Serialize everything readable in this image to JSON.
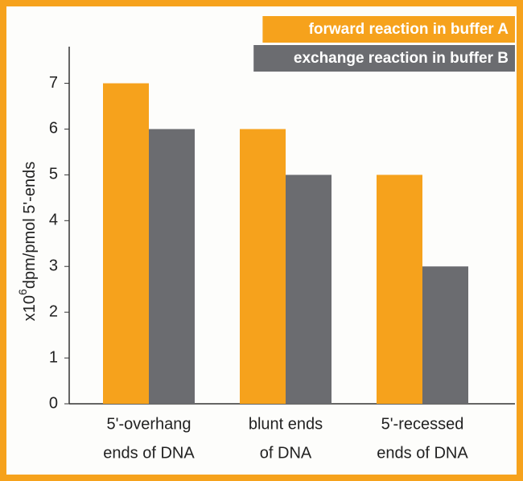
{
  "chart_data": {
    "type": "bar",
    "y_label": {
      "prefix": "x10",
      "superscript": "6",
      "text": "dpm/pmol 5'-ends"
    },
    "categories": [
      [
        "5'-overhang",
        "ends of DNA"
      ],
      [
        "blunt ends",
        "of DNA"
      ],
      [
        "5'-recessed",
        "ends of DNA"
      ]
    ],
    "series": [
      {
        "name": "forward reaction in buffer A",
        "color": "#f6a21c",
        "values": [
          7,
          6,
          5
        ]
      },
      {
        "name": "exchange reaction in buffer B",
        "color": "#6b6c70",
        "values": [
          6,
          5,
          3
        ]
      }
    ],
    "ylim": [
      0,
      7.8
    ],
    "yticks": [
      0,
      1,
      2,
      3,
      4,
      5,
      6,
      7
    ],
    "grid": false,
    "legend": "top-right"
  }
}
